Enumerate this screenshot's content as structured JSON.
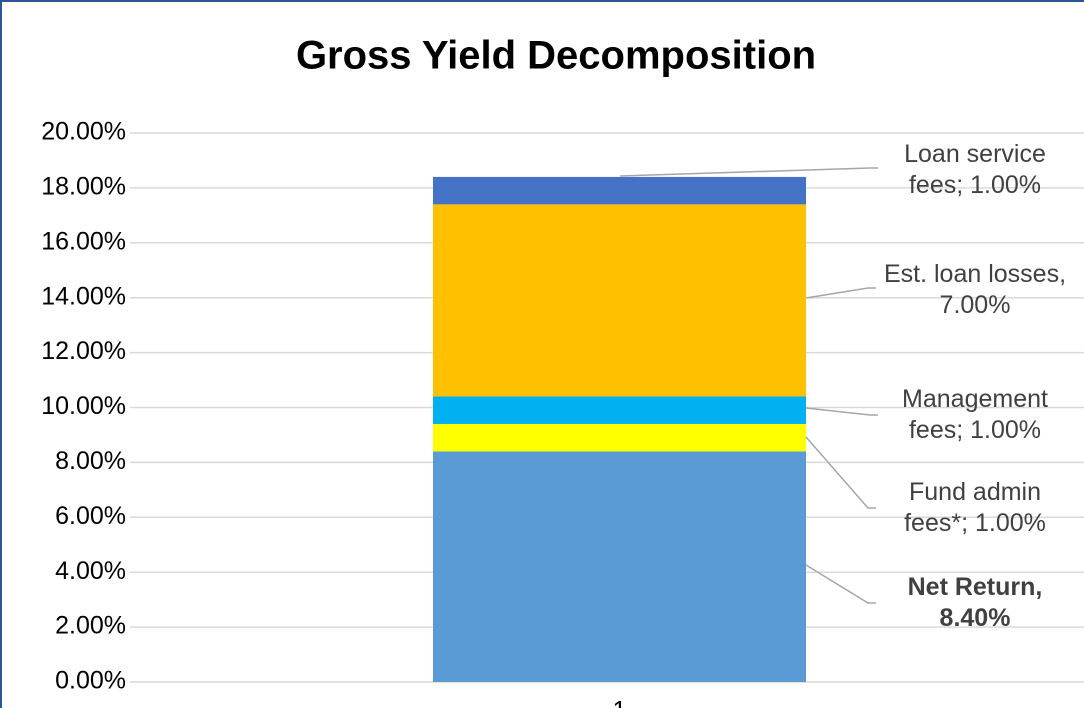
{
  "chart_data": {
    "type": "stacked_bar",
    "title": "Gross Yield Decomposition",
    "categories": [
      "1"
    ],
    "series": [
      {
        "color": "#5b9bd5",
        "values": [
          8.4
        ],
        "value_labels": [
          "Net Return, 8.40%"
        ]
      },
      {
        "color": "#ffff00",
        "values": [
          1
        ],
        "value_labels": [
          "Fund admin fees*; 1.00%"
        ]
      },
      {
        "color": "#00b0f0",
        "values": [
          1
        ],
        "value_labels": [
          "Management fees; 1.00%"
        ]
      },
      {
        "color": "#ffc000",
        "values": [
          7
        ],
        "value_labels": [
          "Est. loan losses, 7.00%"
        ]
      },
      {
        "color": "#4472c4",
        "values": [
          1
        ],
        "value_labels": [
          "Loan service fees; 1.00%"
        ]
      }
    ],
    "ylim": [
      0,
      20
    ],
    "yticks": [
      {
        "value": 0,
        "label": "0.00%"
      },
      {
        "value": 2,
        "label": "2.00%"
      },
      {
        "value": 4,
        "label": "4.00%"
      },
      {
        "value": 6,
        "label": "6.00%"
      },
      {
        "value": 8,
        "label": "8.00%"
      },
      {
        "value": 10,
        "label": "10.00%"
      },
      {
        "value": 12,
        "label": "12.00%"
      },
      {
        "value": 14,
        "label": "14.00%"
      },
      {
        "value": 16,
        "label": "16.00%"
      },
      {
        "value": 18,
        "label": "18.00%"
      },
      {
        "value": 20,
        "label": "20.00%"
      }
    ],
    "grid": true
  }
}
